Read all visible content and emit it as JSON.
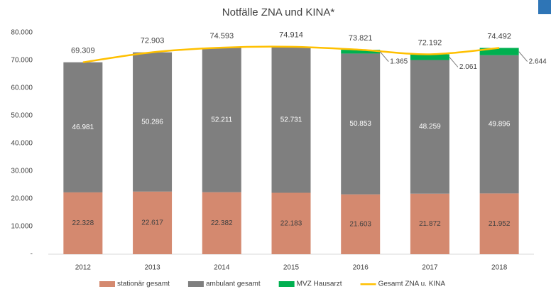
{
  "chart_data": {
    "type": "bar",
    "title": "Notfälle ZNA und KINA*",
    "categories": [
      "2012",
      "2013",
      "2014",
      "2015",
      "2016",
      "2017",
      "2018"
    ],
    "series": [
      {
        "name": "stationär gesamt",
        "type": "bar",
        "color": "#d4896f",
        "values": [
          22328,
          22617,
          22382,
          22183,
          21603,
          21872,
          21952
        ],
        "value_labels": [
          "22.328",
          "22.617",
          "22.382",
          "22.183",
          "21.603",
          "21.872",
          "21.952"
        ]
      },
      {
        "name": "ambulant gesamt",
        "type": "bar",
        "color": "#7f7f7f",
        "values": [
          46981,
          50286,
          52211,
          52731,
          50853,
          48259,
          49896
        ],
        "value_labels": [
          "46.981",
          "50.286",
          "52.211",
          "52.731",
          "50.853",
          "48.259",
          "49.896"
        ]
      },
      {
        "name": "MVZ Hausarzt",
        "type": "bar",
        "color": "#00b050",
        "values": [
          null,
          null,
          null,
          null,
          1365,
          2061,
          2644
        ],
        "value_labels": [
          null,
          null,
          null,
          null,
          "1.365",
          "2.061",
          "2.644"
        ]
      },
      {
        "name": "Gesamt ZNA u. KINA",
        "type": "line",
        "color": "#ffc000",
        "values": [
          69309,
          72903,
          74593,
          74914,
          73821,
          72192,
          74492
        ],
        "value_labels": [
          "69.309",
          "72.903",
          "74.593",
          "74.914",
          "73.821",
          "72.192",
          "74.492"
        ]
      }
    ],
    "ylim": [
      0,
      80000
    ],
    "yticks": [
      {
        "value": 0,
        "label": "-"
      },
      {
        "value": 10000,
        "label": "10.000"
      },
      {
        "value": 20000,
        "label": "20.000"
      },
      {
        "value": 30000,
        "label": "30.000"
      },
      {
        "value": 40000,
        "label": "40.000"
      },
      {
        "value": 50000,
        "label": "50.000"
      },
      {
        "value": 60000,
        "label": "60.000"
      },
      {
        "value": 70000,
        "label": "70.000"
      },
      {
        "value": 80000,
        "label": "80.000"
      }
    ],
    "grid": false,
    "legend": "bottom"
  }
}
